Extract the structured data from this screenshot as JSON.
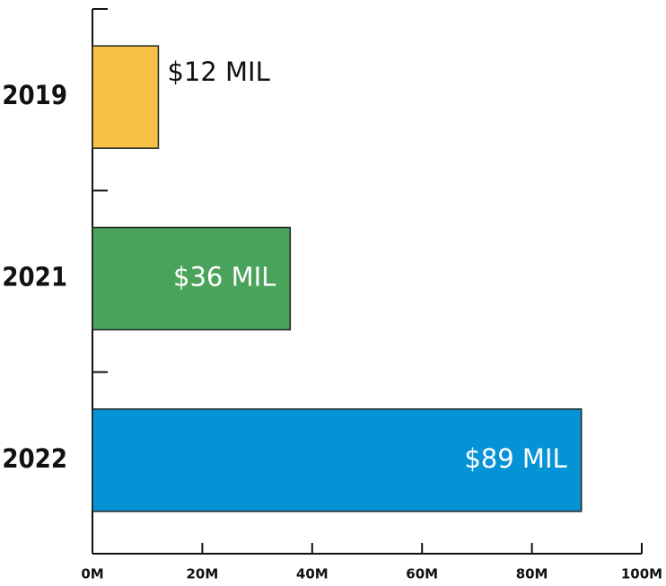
{
  "chart_data": {
    "type": "bar",
    "orientation": "horizontal",
    "categories": [
      "2019",
      "2021",
      "2022"
    ],
    "values": [
      12,
      36,
      89
    ],
    "value_labels": [
      "$12 MIL",
      "$36 MIL",
      "$89 MIL"
    ],
    "colors": [
      "#f7c244",
      "#4aa35a",
      "#0693d6"
    ],
    "xlim": [
      0,
      100
    ],
    "xticks": [
      {
        "value": 0,
        "label": "0M"
      },
      {
        "value": 20,
        "label": "20M"
      },
      {
        "value": 40,
        "label": "40M"
      },
      {
        "value": 60,
        "label": "60M"
      },
      {
        "value": 80,
        "label": "80M"
      },
      {
        "value": 100,
        "label": "100M"
      }
    ]
  }
}
